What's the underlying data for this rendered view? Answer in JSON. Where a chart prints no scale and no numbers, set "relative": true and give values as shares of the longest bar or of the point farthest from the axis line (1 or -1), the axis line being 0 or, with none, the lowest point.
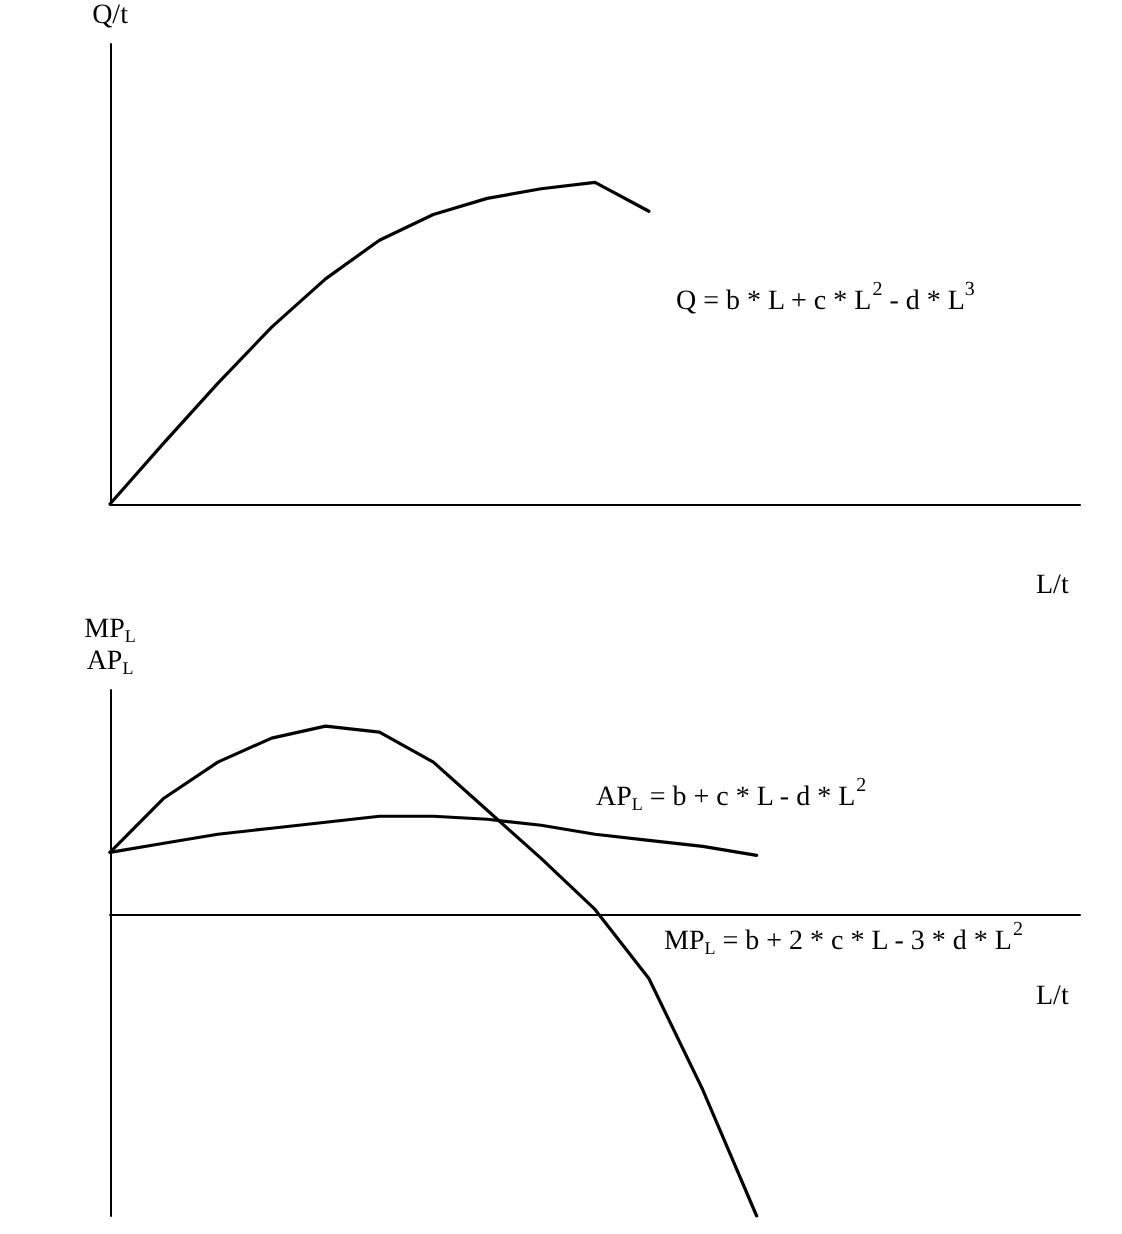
{
  "chart_data": [
    {
      "type": "line",
      "relative": true,
      "xlabel": "L/t",
      "ylabel": "Q/t",
      "tick_labels": false,
      "grid": false,
      "marker": "none",
      "line_style": "solid",
      "categories": [
        null,
        null,
        null,
        null,
        null,
        null,
        null,
        null,
        null,
        null,
        null,
        null,
        null,
        null,
        null,
        null,
        null,
        null,
        null
      ],
      "series": [
        {
          "color": "#000000",
          "values": [
            0,
            0.19,
            0.375,
            0.55,
            0.7,
            0.82,
            0.9,
            0.95,
            0.98,
            1.0,
            0.91,
            null,
            null,
            null,
            null,
            null,
            null,
            null,
            null
          ]
        }
      ],
      "annotations": [
        "Q = b * L + c * L$^{2}$ - d * L$^{3}$"
      ]
    },
    {
      "type": "line",
      "relative": true,
      "xlabel": "L/t",
      "ylabel": "MP$_{L}$\nAP$_{L}$",
      "tick_labels": false,
      "grid": false,
      "marker": "none",
      "line_style": "solid",
      "categories": [
        null,
        null,
        null,
        null,
        null,
        null,
        null,
        null,
        null,
        null,
        null,
        null,
        null,
        null,
        null,
        null,
        null,
        null,
        null
      ],
      "series": [
        {
          "color": "#000000",
          "values": [
            0.21,
            0.24,
            0.27,
            0.29,
            0.31,
            0.33,
            0.33,
            0.32,
            0.3,
            0.27,
            0.25,
            0.23,
            0.2,
            null,
            null,
            null,
            null,
            null,
            null
          ]
        },
        {
          "color": "#000000",
          "values": [
            0.21,
            0.39,
            0.51,
            0.59,
            0.63,
            0.61,
            0.51,
            0.35,
            0.19,
            0.02,
            -0.21,
            -0.58,
            -1,
            null,
            null,
            null,
            null,
            null,
            null
          ]
        }
      ],
      "annotations": [
        "AP$_{L}$ = b + c * L - d * L$^{2}$",
        "MP$_{L}$ = b + 2 * c * L - 3 * d * L$^{2}$"
      ]
    }
  ]
}
